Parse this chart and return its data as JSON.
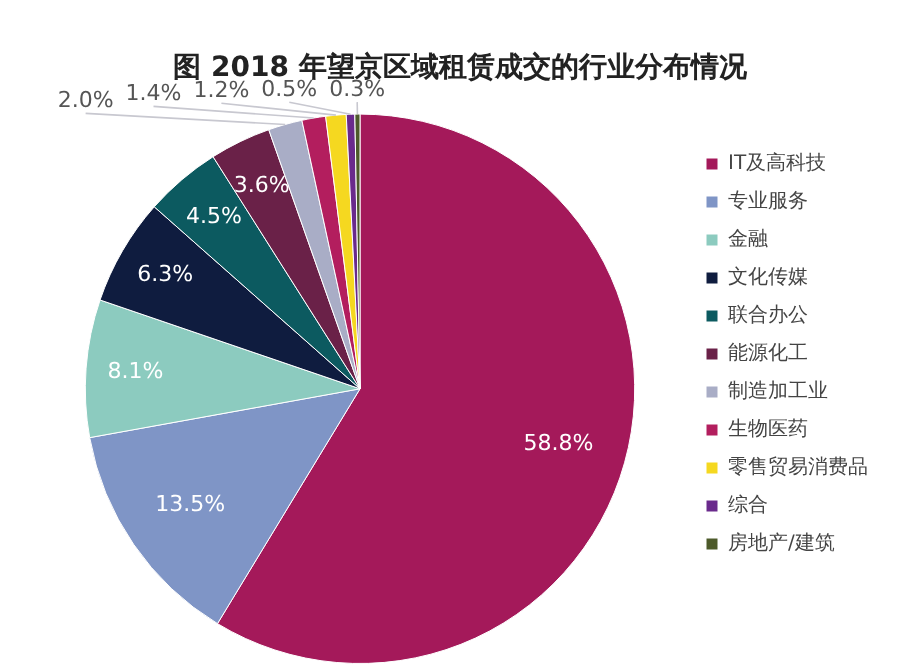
{
  "chart_data": {
    "type": "pie",
    "title": "图 2018 年望京区域租赁成交的行业分布情况",
    "categories": [
      "IT及高科技",
      "专业服务",
      "金融",
      "文化传媒",
      "联合办公",
      "能源化工",
      "制造加工业",
      "生物医药",
      "零售贸易消费品",
      "综合",
      "房地产/建筑"
    ],
    "values": [
      58.8,
      13.5,
      8.1,
      6.3,
      4.5,
      3.6,
      2.0,
      1.4,
      1.2,
      0.5,
      0.3
    ],
    "colors": [
      "#a4195a",
      "#7f95c6",
      "#8ccbbf",
      "#0f1c3f",
      "#0c5a60",
      "#6a2148",
      "#a9adc6",
      "#b31e5e",
      "#f5d820",
      "#6a2a8c",
      "#4d5a2a"
    ],
    "value_labels": [
      "58.8%",
      "13.5%",
      "8.1%",
      "6.3%",
      "4.5%",
      "3.6%",
      "2.0%",
      "1.4%",
      "1.2%",
      "0.5%",
      "0.3%"
    ],
    "legend": "right"
  }
}
